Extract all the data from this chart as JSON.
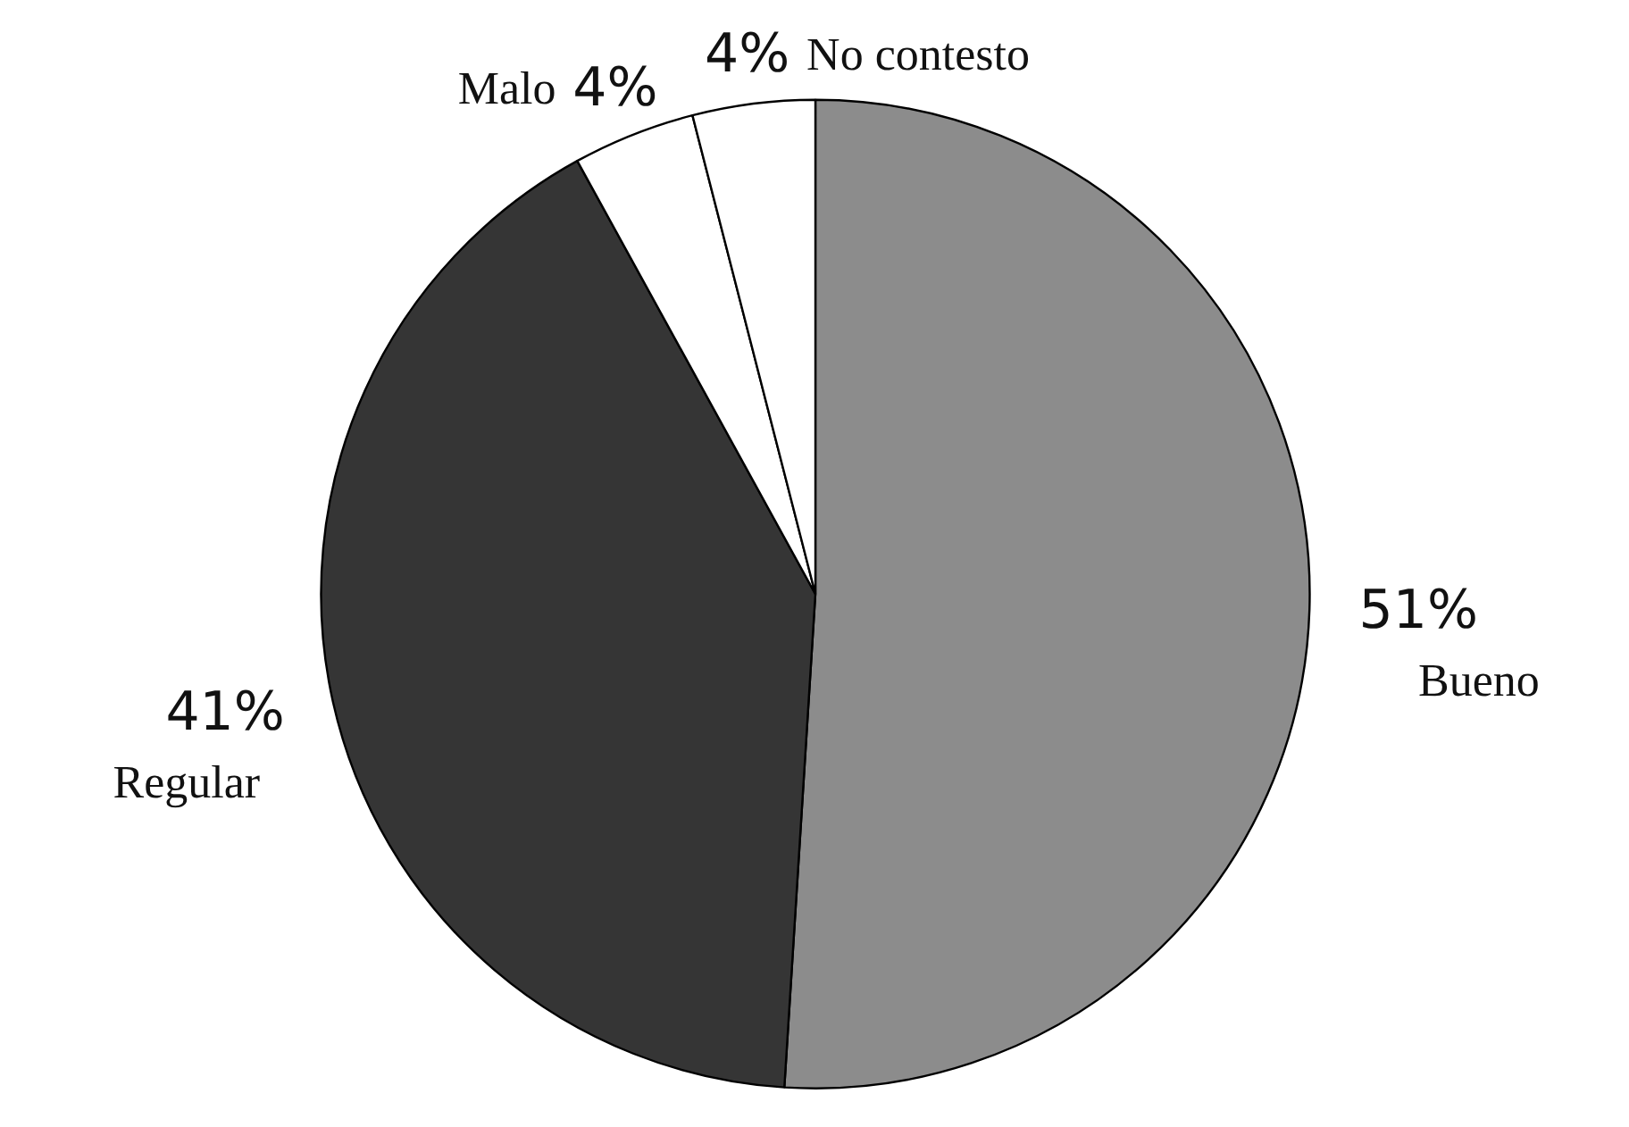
{
  "chart_data": {
    "type": "pie",
    "categories": [
      "Bueno",
      "Regular",
      "Malo",
      "No contesto"
    ],
    "values": [
      51,
      41,
      4,
      4
    ],
    "colors": [
      "#8c8c8c",
      "#353535",
      "#ffffff",
      "#ffffff"
    ],
    "value_labels": [
      "51%",
      "41%",
      "4%",
      "4%"
    ]
  }
}
